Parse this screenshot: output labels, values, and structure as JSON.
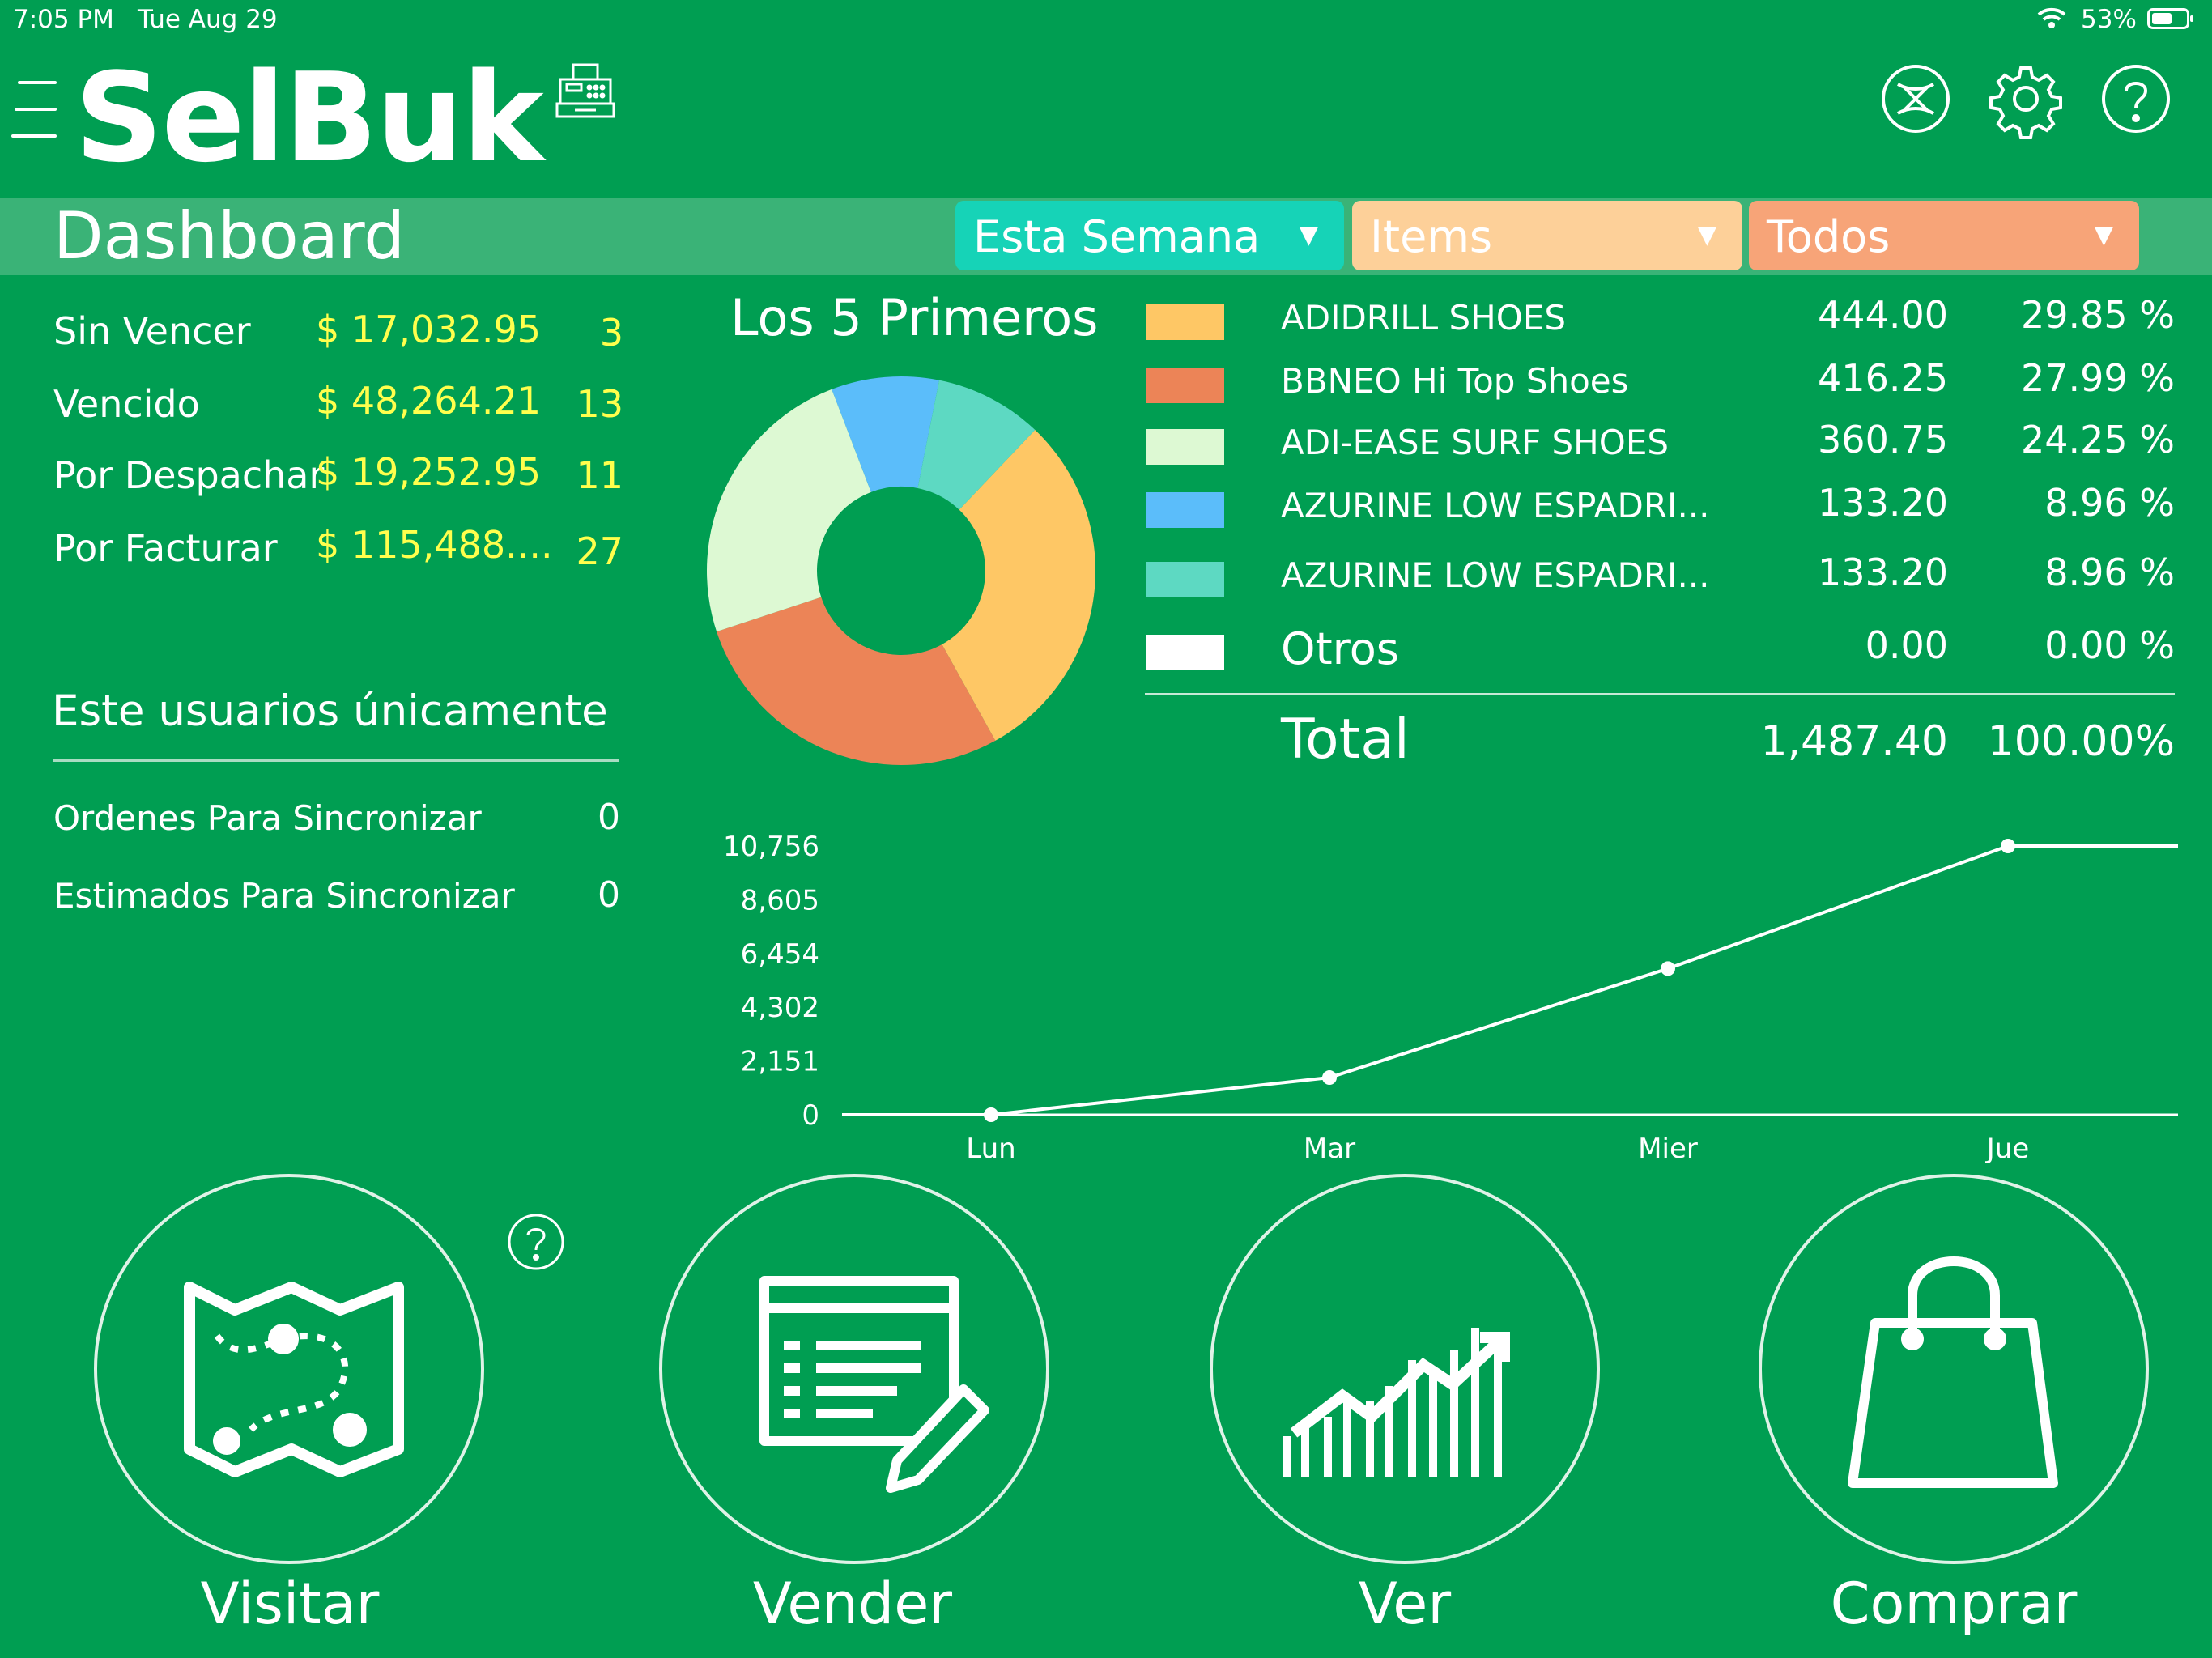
{
  "status_bar": {
    "time": "7:05 PM",
    "date": "Tue Aug 29",
    "battery": "53%"
  },
  "header": {
    "logo": "SelBuk",
    "icons": [
      "menu-icon",
      "cash-register-icon",
      "sync-icon",
      "gear-icon",
      "help-icon"
    ]
  },
  "titlebar": {
    "title": "Dashboard",
    "period": {
      "value": "Esta Semana",
      "color": "#16d3b7"
    },
    "category": {
      "value": "Items",
      "color": "#fdd099"
    },
    "scope": {
      "value": "Todos",
      "color": "#f7a478"
    }
  },
  "stats": [
    {
      "label": "Sin Vencer",
      "amount": "$ 17,032.95",
      "count": "3"
    },
    {
      "label": "Vencido",
      "amount": "$ 48,264.21",
      "count": "13"
    },
    {
      "label": "Por Despachar",
      "amount": "$ 19,252.95",
      "count": "11"
    },
    {
      "label": "Por Facturar",
      "amount": "$ 115,488....",
      "count": "27"
    }
  ],
  "user_section": {
    "title": "Este usuarios únicamente",
    "items": [
      {
        "label": "Ordenes Para Sincronizar",
        "value": "0"
      },
      {
        "label": "Estimados Para Sincronizar",
        "value": "0"
      }
    ]
  },
  "top5": {
    "title": "Los 5 Primeros",
    "items": [
      {
        "name": "ADIDRILL SHOES",
        "value": "444.00",
        "pct": "29.85 %",
        "color": "#fec765"
      },
      {
        "name": "BBNEO Hi Top Shoes",
        "value": "416.25",
        "pct": "27.99 %",
        "color": "#ec8457"
      },
      {
        "name": "ADI-EASE SURF SHOES",
        "value": "360.75",
        "pct": "24.25 %",
        "color": "#ddf9d3"
      },
      {
        "name": "AZURINE LOW ESPADRI...",
        "value": "133.20",
        "pct": "8.96 %",
        "color": "#5bbdfa"
      },
      {
        "name": "AZURINE LOW ESPADRI...",
        "value": "133.20",
        "pct": "8.96 %",
        "color": "#5dd9c2"
      },
      {
        "name": "Otros",
        "value": "0.00",
        "pct": "0.00 %",
        "color": "#ffffff"
      }
    ],
    "total": {
      "label": "Total",
      "value": "1,487.40",
      "pct": "100.00%"
    }
  },
  "chart_data": [
    {
      "type": "pie",
      "categories": [
        "ADIDRILL SHOES",
        "BBNEO Hi Top Shoes",
        "ADI-EASE SURF SHOES",
        "AZURINE LOW ESPADRI...",
        "AZURINE LOW ESPADRI...",
        "Otros"
      ],
      "values": [
        444.0,
        416.25,
        360.75,
        133.2,
        133.2,
        0.0
      ],
      "colors": [
        "#fec765",
        "#ec8457",
        "#ddf9d3",
        "#5bbdfa",
        "#5dd9c2",
        "#ffffff"
      ],
      "title": "Los 5 Primeros",
      "donut": true
    },
    {
      "type": "line",
      "categories": [
        "Lun",
        "Mar",
        "Mier",
        "Jue"
      ],
      "values": [
        0,
        1490,
        5850,
        10756
      ],
      "yticks": [
        "0",
        "2,151",
        "4,302",
        "6,454",
        "8,605",
        "10,756"
      ],
      "ylim": [
        0,
        10756
      ],
      "extends_flat_after_last": true,
      "color": "#ffffff"
    }
  ],
  "actions": [
    {
      "label": "Visitar",
      "icon": "map-route-icon"
    },
    {
      "label": "Vender",
      "icon": "invoice-edit-icon"
    },
    {
      "label": "Ver",
      "icon": "growth-chart-icon"
    },
    {
      "label": "Comprar",
      "icon": "shopping-bag-icon"
    }
  ]
}
